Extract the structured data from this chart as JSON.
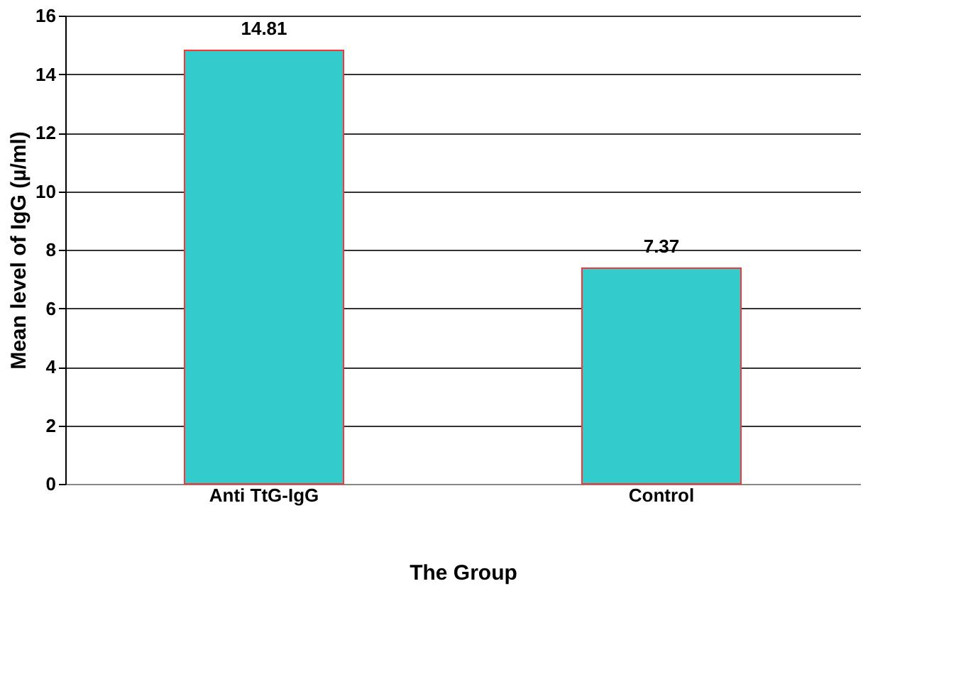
{
  "chart_data": {
    "type": "bar",
    "xlabel": "The Group",
    "ylabel": "Mean level of IgG (µ/ml)",
    "categories": [
      "Anti TtG-IgG",
      "Control"
    ],
    "values": [
      14.81,
      7.37
    ],
    "color": "#33cccc",
    "ylim": [
      0,
      16
    ],
    "yticks": [
      0,
      2,
      4,
      6,
      8,
      10,
      12,
      14,
      16
    ],
    "grid": "y",
    "data_labels": true
  }
}
